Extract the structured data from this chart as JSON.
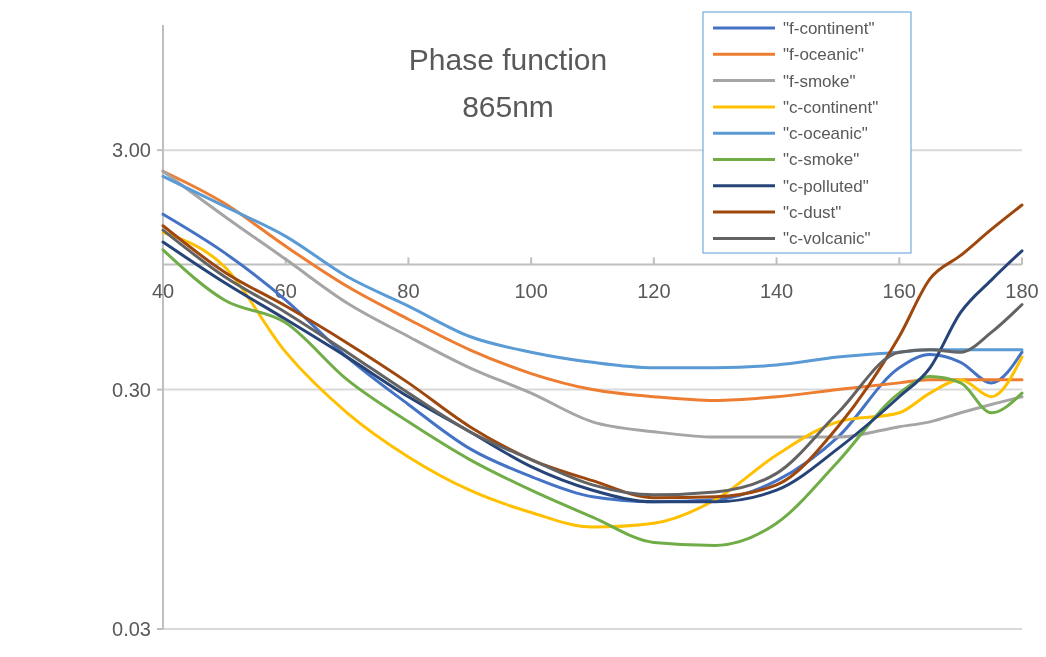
{
  "chart_data": {
    "type": "line",
    "title": "Phase function",
    "subtitle": "865nm",
    "log": "y",
    "grid": "y",
    "legend": "top right",
    "line_style": "solid",
    "marker": "none",
    "x": [
      40,
      50,
      60,
      70,
      80,
      90,
      100,
      110,
      120,
      130,
      140,
      150,
      160,
      165,
      170,
      175,
      180
    ],
    "xlim": [
      40,
      180
    ],
    "xticks": [
      40,
      60,
      80,
      100,
      120,
      140,
      160,
      180
    ],
    "ylim": [
      0.03,
      10
    ],
    "yticks": [
      {
        "value": 0.03,
        "label": "0.03"
      },
      {
        "value": 0.3,
        "label": "0.30"
      },
      {
        "value": 3,
        "label": "3.00"
      }
    ],
    "series": [
      {
        "name": "\"f-continent\"",
        "color": "#4472c4",
        "values": [
          1.62,
          1.12,
          0.71,
          0.41,
          0.26,
          0.17,
          0.13,
          0.107,
          0.102,
          0.104,
          0.125,
          0.19,
          0.37,
          0.42,
          0.39,
          0.32,
          0.43
        ]
      },
      {
        "name": "\"f-oceanic\"",
        "color": "#ed7d31",
        "values": [
          2.45,
          1.8,
          1.19,
          0.81,
          0.59,
          0.44,
          0.35,
          0.3,
          0.28,
          0.27,
          0.28,
          0.3,
          0.32,
          0.33,
          0.33,
          0.33,
          0.33
        ]
      },
      {
        "name": "\"f-smoke\"",
        "color": "#a5a5a5",
        "values": [
          2.45,
          1.59,
          1.05,
          0.69,
          0.5,
          0.37,
          0.29,
          0.22,
          0.2,
          0.19,
          0.19,
          0.19,
          0.21,
          0.22,
          0.24,
          0.26,
          0.28
        ]
      },
      {
        "name": "\"c-continent\"",
        "color": "#ffc000",
        "values": [
          1.36,
          0.98,
          0.43,
          0.24,
          0.157,
          0.114,
          0.092,
          0.08,
          0.083,
          0.104,
          0.16,
          0.22,
          0.24,
          0.29,
          0.33,
          0.28,
          0.41
        ]
      },
      {
        "name": "\"c-oceanic\"",
        "color": "#5b9bd5",
        "values": [
          2.33,
          1.75,
          1.31,
          0.89,
          0.67,
          0.5,
          0.43,
          0.39,
          0.37,
          0.37,
          0.38,
          0.41,
          0.43,
          0.44,
          0.44,
          0.44,
          0.44
        ]
      },
      {
        "name": "\"c-smoke\"",
        "color": "#70ad47",
        "values": [
          1.15,
          0.71,
          0.57,
          0.33,
          0.22,
          0.153,
          0.114,
          0.088,
          0.069,
          0.067,
          0.083,
          0.15,
          0.29,
          0.34,
          0.32,
          0.24,
          0.29
        ]
      },
      {
        "name": "\"c-polluted\"",
        "color": "#264478",
        "values": [
          1.24,
          0.84,
          0.59,
          0.41,
          0.28,
          0.2,
          0.143,
          0.114,
          0.102,
          0.102,
          0.114,
          0.17,
          0.28,
          0.37,
          0.63,
          0.86,
          1.14
        ]
      },
      {
        "name": "\"c-dust\"",
        "color": "#9e480e",
        "values": [
          1.45,
          0.93,
          0.67,
          0.47,
          0.32,
          0.21,
          0.153,
          0.125,
          0.106,
          0.107,
          0.12,
          0.21,
          0.5,
          0.87,
          1.09,
          1.4,
          1.77
        ]
      },
      {
        "name": "\"c-volcanic\"",
        "color": "#636363",
        "values": [
          1.39,
          0.89,
          0.63,
          0.43,
          0.29,
          0.2,
          0.153,
          0.12,
          0.109,
          0.112,
          0.134,
          0.24,
          0.43,
          0.44,
          0.43,
          0.52,
          0.68
        ]
      }
    ]
  }
}
